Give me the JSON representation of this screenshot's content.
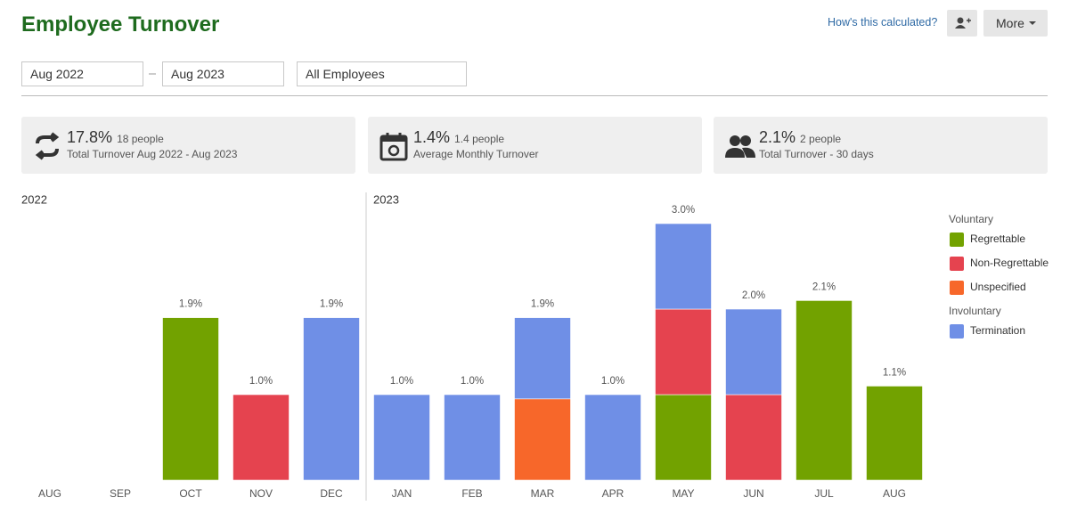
{
  "header": {
    "title": "Employee Turnover",
    "help_link": "How's this calculated?",
    "more_button": "More"
  },
  "filters": {
    "start": "Aug 2022",
    "end": "Aug 2023",
    "group": "All Employees"
  },
  "stats": [
    {
      "value": "17.8%",
      "detail": "18 people",
      "label": "Total Turnover Aug 2022 - Aug 2023"
    },
    {
      "value": "1.4%",
      "detail": "1.4 people",
      "label": "Average Monthly Turnover"
    },
    {
      "value": "2.1%",
      "detail": "2 people",
      "label": "Total Turnover - 30 days"
    }
  ],
  "chart_data": {
    "type": "stacked-bar",
    "year_labels": [
      "2022",
      "2023"
    ],
    "categories": [
      "AUG",
      "SEP",
      "OCT",
      "NOV",
      "DEC",
      "JAN",
      "FEB",
      "MAR",
      "APR",
      "MAY",
      "JUN",
      "JUL",
      "AUG"
    ],
    "ylim": [
      0,
      3
    ],
    "series": [
      {
        "name": "Regrettable",
        "group": "Voluntary",
        "color": "#72a200",
        "values": [
          null,
          null,
          1.9,
          null,
          null,
          null,
          null,
          null,
          null,
          1.0,
          null,
          2.1,
          1.1
        ]
      },
      {
        "name": "Non-Regrettable",
        "color": "#e5434f",
        "values": [
          null,
          null,
          null,
          1.0,
          null,
          null,
          null,
          null,
          null,
          1.0,
          1.0,
          null,
          null
        ]
      },
      {
        "name": "Unspecified",
        "color": "#f7672a",
        "values": [
          null,
          null,
          null,
          null,
          null,
          null,
          null,
          0.95,
          null,
          null,
          null,
          null,
          null
        ]
      },
      {
        "name": "Termination",
        "group": "Involuntary",
        "color": "#6f8fe6",
        "values": [
          null,
          null,
          null,
          null,
          1.9,
          1.0,
          1.0,
          0.95,
          1.0,
          1.0,
          1.0,
          null,
          null
        ]
      }
    ],
    "totals": {
      "values": [
        null,
        null,
        1.9,
        1.0,
        1.9,
        1.0,
        1.0,
        1.9,
        1.0,
        3.0,
        2.0,
        2.1,
        1.1
      ],
      "value_labels": [
        null,
        null,
        "1.9%",
        "1.0%",
        "1.9%",
        "1.0%",
        "1.0%",
        "1.9%",
        "1.0%",
        "3.0%",
        "2.0%",
        "2.1%",
        "1.1%"
      ]
    }
  }
}
